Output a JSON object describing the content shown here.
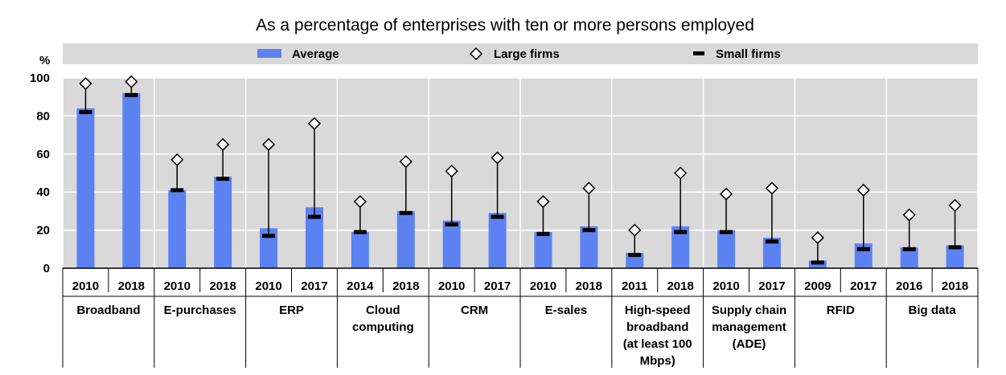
{
  "colors": {
    "average": "#5c82f2",
    "plot_bg": "#d9d9d9",
    "grid": "#ffffff",
    "marker": "#000000"
  },
  "chart_data": {
    "type": "bar",
    "title": "As a percentage of enterprises with ten or more persons employed",
    "ylabel": "%",
    "ylim": [
      0,
      100
    ],
    "yticks": [
      0,
      20,
      40,
      60,
      80,
      100
    ],
    "grid": true,
    "legend_position": "top",
    "series_names": [
      "Average",
      "Large firms",
      "Small firms"
    ],
    "groups": [
      {
        "label": [
          "Broadband"
        ],
        "years": [
          "2010",
          "2018"
        ]
      },
      {
        "label": [
          "E-purchases"
        ],
        "years": [
          "2010",
          "2018"
        ]
      },
      {
        "label": [
          "ERP"
        ],
        "years": [
          "2010",
          "2017"
        ]
      },
      {
        "label": [
          "Cloud",
          "computing"
        ],
        "years": [
          "2014",
          "2018"
        ]
      },
      {
        "label": [
          "CRM"
        ],
        "years": [
          "2010",
          "2017"
        ]
      },
      {
        "label": [
          "E-sales"
        ],
        "years": [
          "2010",
          "2018"
        ]
      },
      {
        "label": [
          "High-speed",
          "broadband",
          "(at least 100",
          "Mbps)"
        ],
        "years": [
          "2011",
          "2018"
        ]
      },
      {
        "label": [
          "Supply chain",
          "management",
          "(ADE)"
        ],
        "years": [
          "2010",
          "2017"
        ]
      },
      {
        "label": [
          "RFID"
        ],
        "years": [
          "2009",
          "2017"
        ]
      },
      {
        "label": [
          "Big data"
        ],
        "years": [
          "2016",
          "2018"
        ]
      }
    ],
    "average": [
      84,
      92,
      41,
      48,
      21,
      32,
      19,
      30,
      25,
      29,
      19,
      22,
      8,
      22,
      20,
      16,
      4,
      13,
      11,
      12
    ],
    "large_firms": [
      97,
      98,
      57,
      65,
      65,
      76,
      35,
      56,
      51,
      58,
      35,
      42,
      20,
      50,
      39,
      42,
      16,
      41,
      28,
      33
    ],
    "small_firms": [
      82,
      91,
      41,
      47,
      17,
      27,
      19,
      29,
      23,
      27,
      18,
      20,
      7,
      19,
      19,
      14,
      3,
      10,
      10,
      11
    ]
  }
}
